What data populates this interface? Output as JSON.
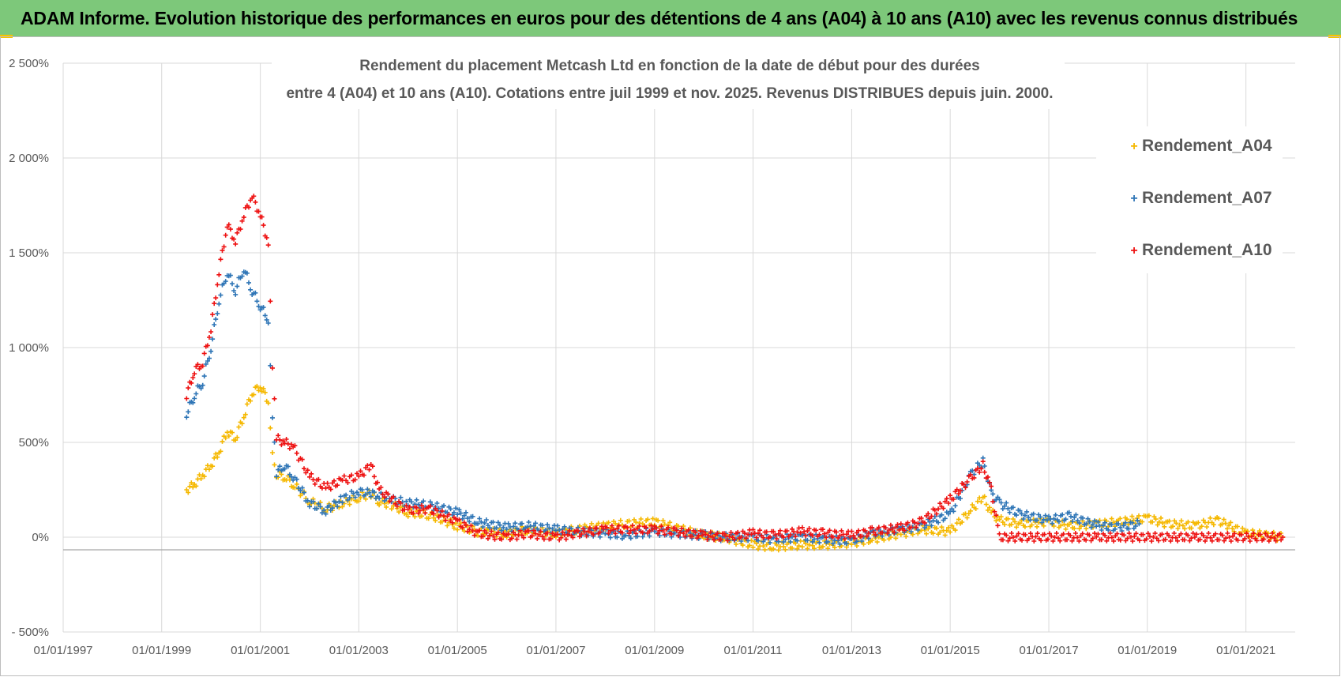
{
  "header": {
    "title": "ADAM Informe. Evolution historique des performances en euros pour des détentions de 4 ans (A04) à 10 ans (A10) avec les revenus connus distribués"
  },
  "colors": {
    "banner": "#7dc87a",
    "a04": "#f5b800",
    "a07": "#2e75b6",
    "a10": "#ee1111",
    "grid": "#d9d9d9",
    "axis": "#a6a6a6"
  },
  "chart_data": {
    "type": "scatter",
    "title_lines": [
      "Rendement du placement Metcash Ltd en fonction de la date de début pour des durées",
      "entre 4 (A04) et 10 ans (A10). Cotations entre juil 1999 et nov. 2025. Revenus DISTRIBUES depuis juin. 2000."
    ],
    "y_unit": "percent",
    "ylim": [
      -500,
      2500
    ],
    "y_ticks": [
      2500,
      2000,
      1500,
      1000,
      500,
      0,
      -500
    ],
    "y_tick_labels": [
      "2 500%",
      "2 000%",
      "1 500%",
      "1 000%",
      "500%",
      "0%",
      "- 500%"
    ],
    "xlim": [
      "1997-01-01",
      "2022-01-01"
    ],
    "x_tick_labels": [
      "01/01/1997",
      "01/01/1999",
      "01/01/2001",
      "01/01/2003",
      "01/01/2005",
      "01/01/2007",
      "01/01/2009",
      "01/01/2011",
      "01/01/2013",
      "01/01/2015",
      "01/01/2017",
      "01/01/2019",
      "01/01/2021"
    ],
    "grid": true,
    "legend_position": "top-right",
    "marker": "+",
    "series": [
      {
        "name": "Rendement_A04",
        "points": [
          [
            "1999-07-05",
            250
          ],
          [
            "1999-09-01",
            280
          ],
          [
            "1999-11-01",
            330
          ],
          [
            "2000-01-01",
            380
          ],
          [
            "2000-03-01",
            450
          ],
          [
            "2000-05-01",
            560
          ],
          [
            "2000-07-01",
            520
          ],
          [
            "2000-09-01",
            640
          ],
          [
            "2000-11-01",
            760
          ],
          [
            "2001-01-01",
            800
          ],
          [
            "2001-03-01",
            720
          ],
          [
            "2001-04-01",
            460
          ],
          [
            "2001-05-01",
            330
          ],
          [
            "2001-07-01",
            320
          ],
          [
            "2001-09-01",
            280
          ],
          [
            "2002-01-01",
            190
          ],
          [
            "2002-05-01",
            150
          ],
          [
            "2002-09-01",
            180
          ],
          [
            "2003-01-01",
            210
          ],
          [
            "2003-04-01",
            230
          ],
          [
            "2003-06-01",
            190
          ],
          [
            "2003-09-01",
            170
          ],
          [
            "2004-01-01",
            130
          ],
          [
            "2004-06-01",
            120
          ],
          [
            "2005-01-01",
            60
          ],
          [
            "2005-06-01",
            30
          ],
          [
            "2006-01-01",
            20
          ],
          [
            "2006-06-01",
            40
          ],
          [
            "2007-01-01",
            20
          ],
          [
            "2007-06-01",
            40
          ],
          [
            "2008-01-01",
            60
          ],
          [
            "2008-06-01",
            70
          ],
          [
            "2009-01-01",
            80
          ],
          [
            "2009-06-01",
            50
          ],
          [
            "2010-01-01",
            10
          ],
          [
            "2010-06-01",
            0
          ],
          [
            "2011-01-01",
            -40
          ],
          [
            "2011-06-01",
            -50
          ],
          [
            "2012-01-01",
            -40
          ],
          [
            "2012-06-01",
            -40
          ],
          [
            "2013-01-01",
            -30
          ],
          [
            "2013-06-01",
            -10
          ],
          [
            "2014-01-01",
            20
          ],
          [
            "2014-06-01",
            40
          ],
          [
            "2015-01-01",
            30
          ],
          [
            "2015-06-01",
            140
          ],
          [
            "2015-09-01",
            210
          ],
          [
            "2015-11-01",
            130
          ],
          [
            "2016-01-01",
            90
          ],
          [
            "2016-06-01",
            70
          ],
          [
            "2017-01-01",
            80
          ],
          [
            "2017-06-01",
            60
          ],
          [
            "2018-01-01",
            70
          ],
          [
            "2018-06-01",
            80
          ],
          [
            "2019-01-01",
            100
          ],
          [
            "2019-06-01",
            70
          ],
          [
            "2020-01-01",
            60
          ],
          [
            "2020-06-01",
            90
          ],
          [
            "2021-01-01",
            20
          ],
          [
            "2021-06-01",
            10
          ],
          [
            "2021-10-01",
            0
          ]
        ]
      },
      {
        "name": "Rendement_A07",
        "points": [
          [
            "1999-07-05",
            650
          ],
          [
            "1999-09-01",
            750
          ],
          [
            "1999-11-01",
            820
          ],
          [
            "2000-01-01",
            1000
          ],
          [
            "2000-03-01",
            1250
          ],
          [
            "2000-05-01",
            1400
          ],
          [
            "2000-07-01",
            1300
          ],
          [
            "2000-09-01",
            1420
          ],
          [
            "2000-11-01",
            1300
          ],
          [
            "2001-01-01",
            1220
          ],
          [
            "2001-03-01",
            1150
          ],
          [
            "2001-04-01",
            650
          ],
          [
            "2001-05-01",
            340
          ],
          [
            "2001-07-01",
            380
          ],
          [
            "2001-09-01",
            320
          ],
          [
            "2002-01-01",
            180
          ],
          [
            "2002-05-01",
            140
          ],
          [
            "2002-09-01",
            200
          ],
          [
            "2003-01-01",
            240
          ],
          [
            "2003-04-01",
            230
          ],
          [
            "2003-06-01",
            220
          ],
          [
            "2003-09-01",
            200
          ],
          [
            "2004-01-01",
            180
          ],
          [
            "2004-06-01",
            170
          ],
          [
            "2005-01-01",
            130
          ],
          [
            "2005-06-01",
            80
          ],
          [
            "2006-01-01",
            50
          ],
          [
            "2006-06-01",
            60
          ],
          [
            "2007-01-01",
            40
          ],
          [
            "2007-06-01",
            30
          ],
          [
            "2008-01-01",
            20
          ],
          [
            "2008-06-01",
            10
          ],
          [
            "2009-01-01",
            30
          ],
          [
            "2009-06-01",
            20
          ],
          [
            "2010-01-01",
            10
          ],
          [
            "2010-06-01",
            0
          ],
          [
            "2011-01-01",
            0
          ],
          [
            "2011-06-01",
            -10
          ],
          [
            "2012-01-01",
            0
          ],
          [
            "2012-06-01",
            -10
          ],
          [
            "2013-01-01",
            -20
          ],
          [
            "2013-06-01",
            20
          ],
          [
            "2014-01-01",
            40
          ],
          [
            "2014-06-01",
            60
          ],
          [
            "2015-01-01",
            120
          ],
          [
            "2015-06-01",
            330
          ],
          [
            "2015-09-01",
            400
          ],
          [
            "2015-11-01",
            230
          ],
          [
            "2016-01-01",
            180
          ],
          [
            "2016-06-01",
            120
          ],
          [
            "2017-01-01",
            90
          ],
          [
            "2017-06-01",
            110
          ],
          [
            "2018-01-01",
            60
          ],
          [
            "2018-06-01",
            50
          ],
          [
            "2018-11-01",
            70
          ]
        ]
      },
      {
        "name": "Rendement_A10",
        "points": [
          [
            "1999-07-05",
            750
          ],
          [
            "1999-09-01",
            880
          ],
          [
            "1999-11-01",
            920
          ],
          [
            "2000-01-01",
            1100
          ],
          [
            "2000-03-01",
            1400
          ],
          [
            "2000-05-01",
            1650
          ],
          [
            "2000-07-01",
            1560
          ],
          [
            "2000-09-01",
            1700
          ],
          [
            "2000-11-01",
            1800
          ],
          [
            "2001-01-01",
            1700
          ],
          [
            "2001-03-01",
            1550
          ],
          [
            "2001-04-01",
            900
          ],
          [
            "2001-05-01",
            520
          ],
          [
            "2001-07-01",
            500
          ],
          [
            "2001-09-01",
            480
          ],
          [
            "2002-01-01",
            320
          ],
          [
            "2002-05-01",
            260
          ],
          [
            "2002-09-01",
            300
          ],
          [
            "2003-01-01",
            320
          ],
          [
            "2003-04-01",
            380
          ],
          [
            "2003-06-01",
            250
          ],
          [
            "2003-09-01",
            200
          ],
          [
            "2004-01-01",
            140
          ],
          [
            "2004-06-01",
            150
          ],
          [
            "2005-01-01",
            80
          ],
          [
            "2005-06-01",
            20
          ],
          [
            "2006-01-01",
            0
          ],
          [
            "2006-06-01",
            20
          ],
          [
            "2007-01-01",
            0
          ],
          [
            "2007-06-01",
            20
          ],
          [
            "2008-01-01",
            40
          ],
          [
            "2008-06-01",
            40
          ],
          [
            "2009-01-01",
            40
          ],
          [
            "2009-06-01",
            30
          ],
          [
            "2010-01-01",
            10
          ],
          [
            "2010-06-01",
            0
          ],
          [
            "2011-01-01",
            20
          ],
          [
            "2011-06-01",
            10
          ],
          [
            "2012-01-01",
            30
          ],
          [
            "2012-06-01",
            20
          ],
          [
            "2013-01-01",
            10
          ],
          [
            "2013-06-01",
            30
          ],
          [
            "2014-01-01",
            50
          ],
          [
            "2014-06-01",
            80
          ],
          [
            "2015-01-01",
            200
          ],
          [
            "2015-06-01",
            310
          ],
          [
            "2015-09-01",
            380
          ],
          [
            "2015-11-01",
            250
          ],
          [
            "2016-01-01",
            0
          ],
          [
            "2018-01-01",
            0
          ],
          [
            "2020-01-01",
            0
          ],
          [
            "2021-10-01",
            0
          ]
        ]
      }
    ]
  }
}
